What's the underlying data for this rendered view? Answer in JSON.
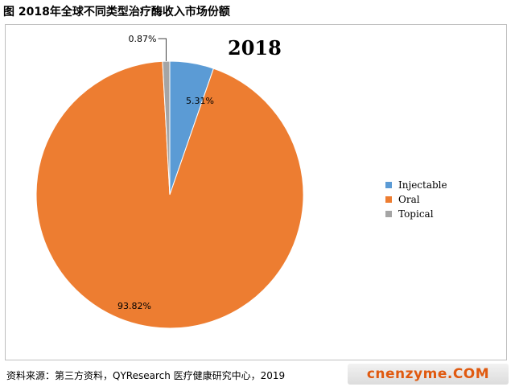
{
  "figure_title": "图 2018年全球不同类型治疗酶收入市场份额",
  "source_text": "资料来源：第三方资料，QYResearch 医疗健康研究中心，2019",
  "watermark_logo": "cnenzyme.COM",
  "chart_data": {
    "type": "pie",
    "title": "2018",
    "categories": [
      "Injectable",
      "Oral",
      "Topical"
    ],
    "values": [
      5.31,
      93.82,
      0.87
    ],
    "labels": [
      "5.31%",
      "93.82%",
      "0.87%"
    ],
    "colors": [
      "#5b9bd5",
      "#ed7d31",
      "#a5a5a5"
    ],
    "start_angle": "12 o'clock, clockwise",
    "legend_position": "right"
  }
}
